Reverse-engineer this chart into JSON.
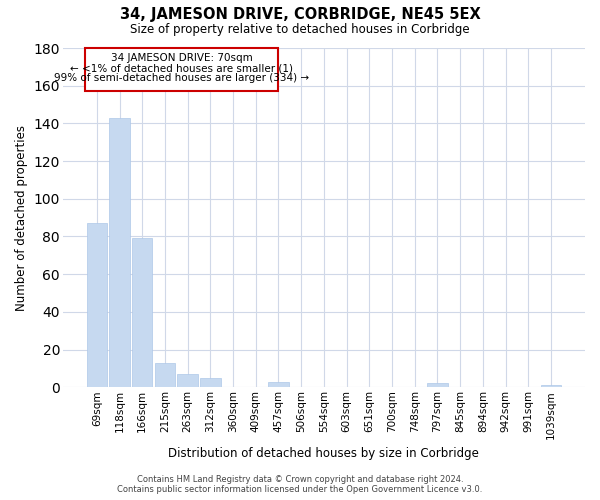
{
  "title": "34, JAMESON DRIVE, CORBRIDGE, NE45 5EX",
  "subtitle": "Size of property relative to detached houses in Corbridge",
  "xlabel": "Distribution of detached houses by size in Corbridge",
  "ylabel": "Number of detached properties",
  "bar_labels": [
    "69sqm",
    "118sqm",
    "166sqm",
    "215sqm",
    "263sqm",
    "312sqm",
    "360sqm",
    "409sqm",
    "457sqm",
    "506sqm",
    "554sqm",
    "603sqm",
    "651sqm",
    "700sqm",
    "748sqm",
    "797sqm",
    "845sqm",
    "894sqm",
    "942sqm",
    "991sqm",
    "1039sqm"
  ],
  "bar_values": [
    87,
    143,
    79,
    13,
    7,
    5,
    0,
    0,
    3,
    0,
    0,
    0,
    0,
    0,
    0,
    2,
    0,
    0,
    0,
    0,
    1
  ],
  "bar_color": "#c6d9f0",
  "bar_edge_color": "#aec8e8",
  "annotation_border_color": "#cc0000",
  "annotation_line1": "34 JAMESON DRIVE: 70sqm",
  "annotation_line2": "← <1% of detached houses are smaller (1)",
  "annotation_line3": "99% of semi-detached houses are larger (334) →",
  "footer_line1": "Contains HM Land Registry data © Crown copyright and database right 2024.",
  "footer_line2": "Contains public sector information licensed under the Open Government Licence v3.0.",
  "ylim": [
    0,
    180
  ],
  "yticks": [
    0,
    20,
    40,
    60,
    80,
    100,
    120,
    140,
    160,
    180
  ],
  "background_color": "#ffffff",
  "grid_color": "#d0d8e8"
}
